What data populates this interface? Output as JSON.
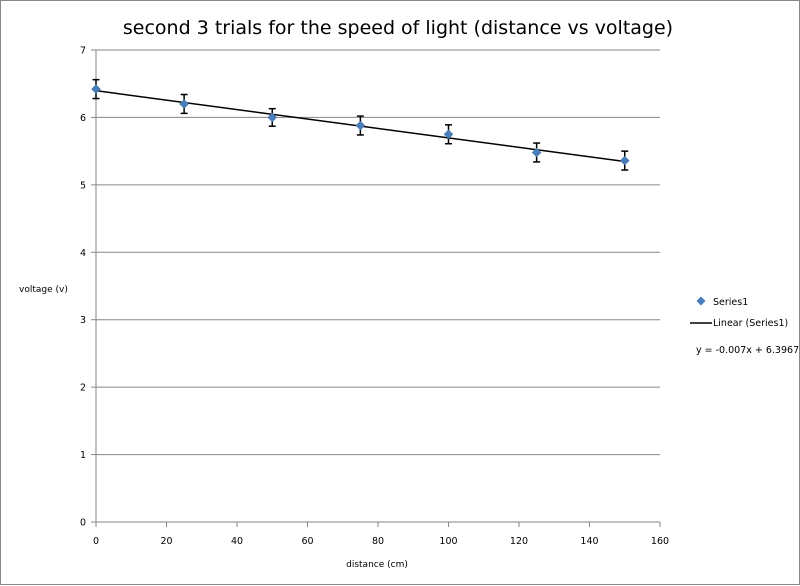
{
  "chart_data": {
    "type": "scatter",
    "title": "second 3 trials for the speed of light (distance vs voltage)",
    "xlabel": "distance (cm)",
    "ylabel": "voltage (v)",
    "xlim": [
      0,
      160
    ],
    "ylim": [
      0,
      7
    ],
    "x_ticks": [
      0,
      20,
      40,
      60,
      80,
      100,
      120,
      140,
      160
    ],
    "y_ticks": [
      0,
      1,
      2,
      3,
      4,
      5,
      6,
      7
    ],
    "grid": "horizontal major gridlines",
    "legend": "right",
    "series": [
      {
        "name": "Series1",
        "marker": "diamond",
        "color": "#4a7ebb",
        "x": [
          0,
          25,
          50,
          75,
          100,
          125,
          150
        ],
        "y": [
          6.42,
          6.2,
          6.0,
          5.88,
          5.75,
          5.48,
          5.36
        ],
        "error": [
          0.14,
          0.14,
          0.13,
          0.14,
          0.14,
          0.14,
          0.14
        ]
      }
    ],
    "trendline": {
      "name": "Linear (Series1)",
      "type": "linear",
      "slope": -0.007,
      "intercept": 6.3967,
      "x_range": [
        0,
        150
      ],
      "color": "#000000",
      "equation_label": "y = -0.007x + 6.3967"
    }
  }
}
